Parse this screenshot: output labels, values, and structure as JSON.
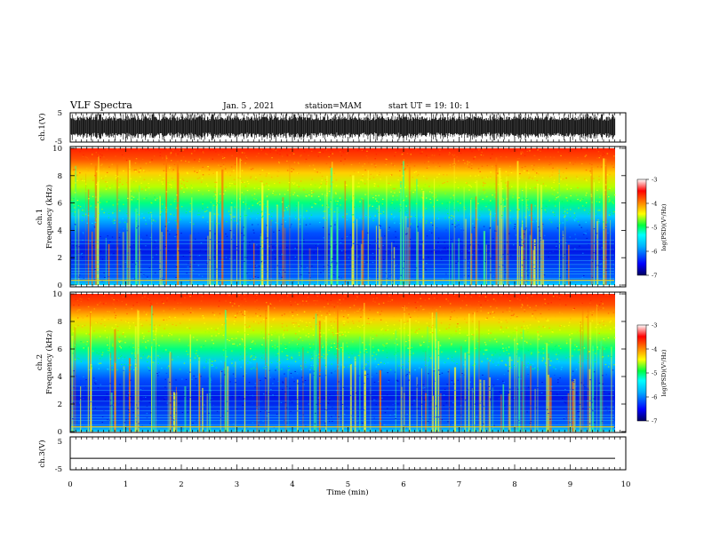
{
  "header": {
    "title": "VLF Spectra",
    "date": "Jan. 5 , 2021",
    "station": "station=MAM",
    "start_ut": "start UT =  19: 10: 1"
  },
  "chart_data": [
    {
      "type": "line",
      "panel": "ch1-waveform",
      "ylabel": "ch.1(V)",
      "ylim": [
        -5,
        5
      ],
      "yticks": [
        "5",
        "-5"
      ],
      "xlim": [
        0,
        10
      ],
      "trace_color": "#000000",
      "description_level": "dense broadband noise spanning the full range"
    },
    {
      "type": "heatmap",
      "panel": "ch1-spectrogram",
      "ylabel_line1": "ch.1",
      "ylabel_line2": "Frequency (kHz)",
      "ylim": [
        0,
        10
      ],
      "yticks": [
        "0",
        "2",
        "4",
        "6",
        "8",
        "10"
      ],
      "xlim": [
        0,
        10
      ],
      "colorbar": {
        "label": "log(PSD)(V²/Hz)",
        "range": [
          -7,
          -3
        ],
        "ticks": [
          "-3",
          "-4",
          "-5",
          "-6",
          "-7"
        ],
        "colors": [
          "#000080",
          "#0000ff",
          "#00a0ff",
          "#00ffff",
          "#00ff60",
          "#ffff00",
          "#ff8000",
          "#ff0000",
          "#ffffff"
        ]
      }
    },
    {
      "type": "heatmap",
      "panel": "ch2-spectrogram",
      "ylabel_line1": "ch.2",
      "ylabel_line2": "Frequency (kHz)",
      "ylim": [
        0,
        10
      ],
      "yticks": [
        "0",
        "2",
        "4",
        "6",
        "8",
        "10"
      ],
      "xlim": [
        0,
        10
      ],
      "colorbar": {
        "label": "log(PSD)(V²/Hz)",
        "range": [
          -7,
          -3
        ],
        "ticks": [
          "-3",
          "-4",
          "-5",
          "-6",
          "-7"
        ]
      }
    },
    {
      "type": "line",
      "panel": "ch3-waveform",
      "ylabel": "ch.3(V)",
      "ylim": [
        -5,
        5
      ],
      "yticks": [
        "5",
        "-5"
      ],
      "xlim": [
        0,
        10
      ],
      "constant_value": -1.5
    }
  ],
  "xaxis": {
    "label": "Time (min)",
    "ticks": [
      "0",
      "1",
      "2",
      "3",
      "4",
      "5",
      "6",
      "7",
      "8",
      "9",
      "10"
    ]
  }
}
